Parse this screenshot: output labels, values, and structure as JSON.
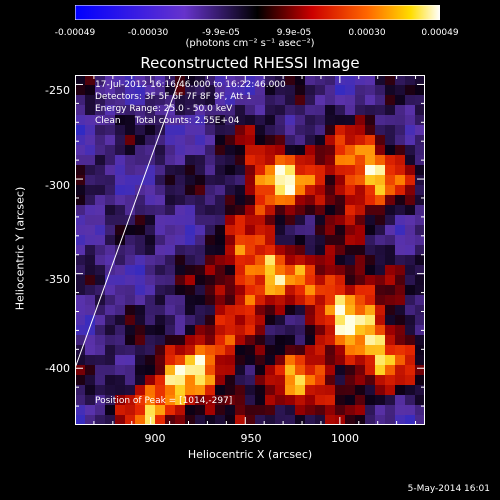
{
  "colorbar": {
    "ticks": [
      "-0.00049",
      "-0.00030",
      "-9.9e-05",
      "9.9e-05",
      "0.00030",
      "0.00049"
    ],
    "label": "(photons cm⁻² s⁻¹ asec⁻²)"
  },
  "header": {
    "title": "Reconstructed RHESSI Image"
  },
  "info": {
    "time": "17-Jul-2012 16:16:46.000 to 16:22:46.000",
    "detectors": "Detectors: 3F 5F 6F 7F 8F 9F, Att 1",
    "energy": "Energy Range: 25.0 - 50.0 keV",
    "clean": "Clean     Total counts: 2.55E+04",
    "peak": "Position of Peak = [1014,-297]"
  },
  "footer": {
    "date": "5-May-2014 16:01"
  },
  "chart_data": {
    "type": "heatmap",
    "title": "Reconstructed RHESSI Image",
    "xlabel": "Heliocentric X (arcsec)",
    "ylabel": "Heliocentric Y (arcsec)",
    "x_ticks": [
      900,
      950,
      1000
    ],
    "y_ticks": [
      -250,
      -300,
      -350,
      -400
    ],
    "xlim": [
      860,
      1045
    ],
    "ylim": [
      -430,
      -245
    ],
    "colorbar_range": [
      -0.00049,
      0.00049
    ],
    "colormap": "blue-purple-black-red-yellow-white",
    "peak": [
      1014,
      -297
    ],
    "limb_line": [
      [
        860,
        -400
      ],
      [
        916,
        -245
      ]
    ],
    "emission_sources": [
      {
        "x": 965,
        "y": -300,
        "level": 0.9
      },
      {
        "x": 1013,
        "y": -297,
        "level": 1.0
      },
      {
        "x": 955,
        "y": -350,
        "level": 0.95
      },
      {
        "x": 1000,
        "y": -360,
        "level": 0.8
      },
      {
        "x": 1020,
        "y": -390,
        "level": 0.85
      },
      {
        "x": 905,
        "y": -420,
        "level": 0.8
      },
      {
        "x": 980,
        "y": -410,
        "level": 0.7
      },
      {
        "x": 930,
        "y": -395,
        "level": 0.75
      }
    ]
  }
}
